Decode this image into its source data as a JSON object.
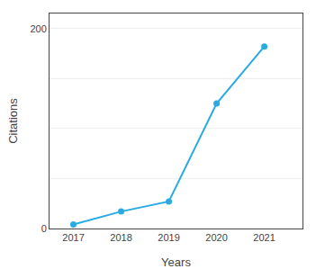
{
  "chart_data": {
    "type": "line",
    "xlabel": "Years",
    "ylabel": "Citations",
    "x": [
      2017,
      2018,
      2019,
      2020,
      2021
    ],
    "values": [
      4,
      17,
      27,
      125,
      182
    ],
    "color": "#29ABE2",
    "marker": "circle",
    "xlim": [
      2016.5,
      2021.8
    ],
    "xticks": [
      2017,
      2018,
      2019,
      2020,
      2021
    ],
    "ylim": [
      0,
      215
    ],
    "yticks": [
      0,
      {
        "value": 50,
        "label": null
      },
      {
        "value": 100,
        "label": null
      },
      {
        "value": 150,
        "label": null
      },
      200
    ],
    "grid": true
  }
}
